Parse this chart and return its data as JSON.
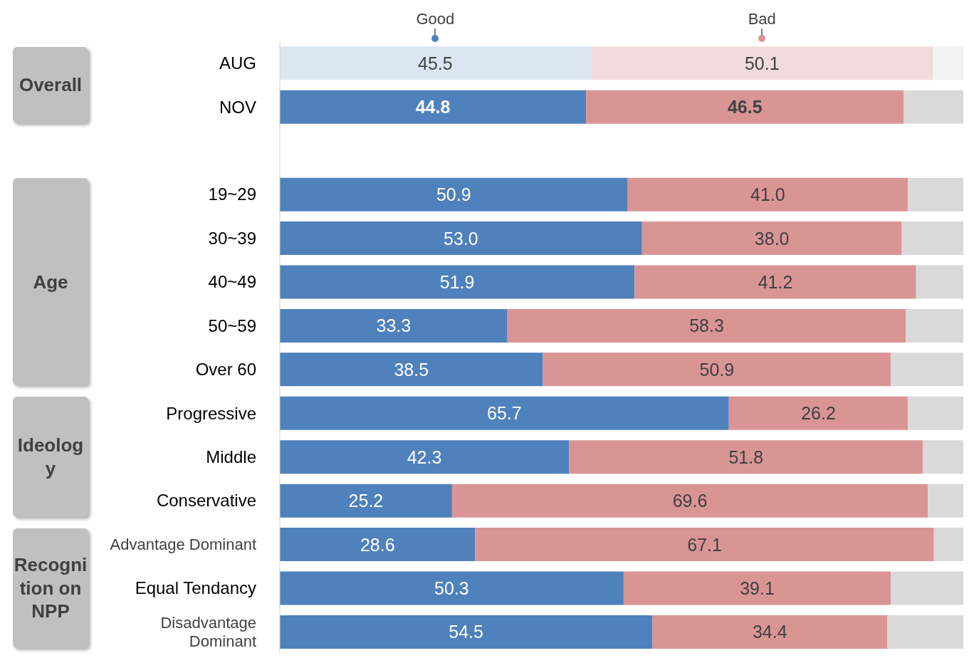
{
  "chart_data": {
    "type": "bar",
    "orientation": "horizontal",
    "stacked": true,
    "legend": "top",
    "tick_labels": "y",
    "xlim": [
      0,
      100
    ],
    "categories": [
      "AUG",
      "NOV",
      null,
      "19~29",
      "30~39",
      "40~49",
      "50~59",
      "Over 60",
      "Progressive",
      "Middle",
      "Conservative",
      "Advantage Dominant",
      "Equal Tendancy",
      "Disadvantage Dominant"
    ],
    "series": [
      {
        "name": "Good",
        "color": "#4f81bd",
        "colors": [
          "#dce6f2",
          "#4f81bd",
          null,
          "#4f81bd",
          "#4f81bd",
          "#4f81bd",
          "#4f81bd",
          "#4f81bd",
          "#4f81bd",
          "#4f81bd",
          "#4f81bd",
          "#4f81bd",
          "#4f81bd",
          "#4f81bd"
        ],
        "values": [
          45.5,
          44.8,
          null,
          50.9,
          53.0,
          51.9,
          33.3,
          38.5,
          65.7,
          42.3,
          25.2,
          28.6,
          50.3,
          54.5
        ],
        "value_labels": [
          "45.5",
          "44.8",
          null,
          "50.9",
          "53.0",
          "51.9",
          "33.3",
          "38.5",
          "65.7",
          "42.3",
          "25.2",
          "28.6",
          "50.3",
          "54.5"
        ]
      },
      {
        "name": "Bad",
        "color": "#d99594",
        "colors": [
          "#f2dcdb",
          "#d99594",
          null,
          "#d99594",
          "#d99594",
          "#d99594",
          "#d99594",
          "#d99594",
          "#d99594",
          "#d99594",
          "#d99594",
          "#d99594",
          "#d99594",
          "#d99594"
        ],
        "values": [
          50.1,
          46.5,
          null,
          41.0,
          38.0,
          41.2,
          58.3,
          50.9,
          26.2,
          51.8,
          69.6,
          67.1,
          39.1,
          34.4
        ],
        "value_labels": [
          "50.1",
          "46.5",
          null,
          "41.0",
          "38.0",
          "41.2",
          "58.3",
          "50.9",
          "26.2",
          "51.8",
          "69.6",
          "67.1",
          "39.1",
          "34.4"
        ]
      },
      {
        "color": "#d9d9d9",
        "colors": [
          "#f2f2f2",
          "#d9d9d9",
          null,
          "#d9d9d9",
          "#d9d9d9",
          "#d9d9d9",
          "#d9d9d9",
          "#d9d9d9",
          "#d9d9d9",
          "#d9d9d9",
          "#d9d9d9",
          "#d9d9d9",
          "#d9d9d9",
          "#d9d9d9"
        ],
        "values": [
          4.4,
          8.7,
          null,
          8.1,
          9.0,
          6.9,
          8.4,
          10.6,
          8.1,
          5.9,
          5.2,
          4.3,
          10.6,
          11.1
        ]
      }
    ],
    "annotations": [
      "Overall",
      "Age",
      "Ideology",
      "Recognition on NPP"
    ]
  }
}
